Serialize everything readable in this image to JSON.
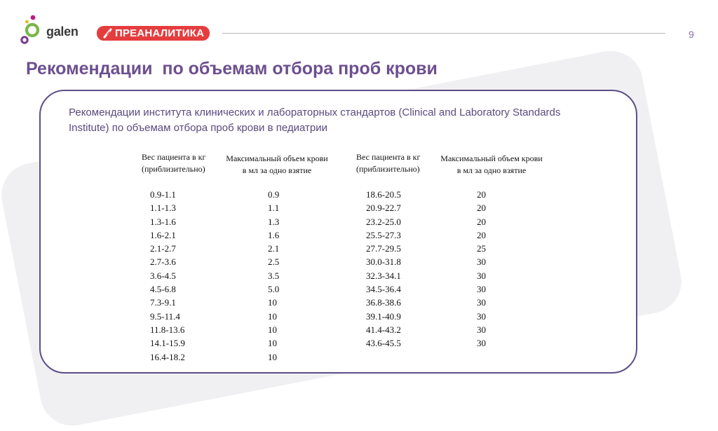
{
  "header": {
    "logo_text": "galen",
    "badge_label": "ПРЕАНАЛИТИКА",
    "page_number": "9"
  },
  "title": "Рекомендации  по объемам отбора проб крови",
  "card": {
    "text": "Рекомендации института клинических и лабораторных стандартов (Clinical and Laboratory Standards Institute) по объемам отбора проб крови в педиатрии"
  },
  "tables": [
    {
      "headers": [
        "Вес пациента в кг\n(приблизительно)",
        "Максимальный объем крови\nв мл за одно взятие"
      ],
      "rows": [
        [
          "0.9-1.1",
          "0.9"
        ],
        [
          "1.1-1.3",
          "1.1"
        ],
        [
          "1.3-1.6",
          "1.3"
        ],
        [
          "1.6-2.1",
          "1.6"
        ],
        [
          "2.1-2.7",
          "2.1"
        ],
        [
          "2.7-3.6",
          "2.5"
        ],
        [
          "3.6-4.5",
          "3.5"
        ],
        [
          "4.5-6.8",
          "5.0"
        ],
        [
          "7.3-9.1",
          "10"
        ],
        [
          "9.5-11.4",
          "10"
        ],
        [
          "11.8-13.6",
          "10"
        ],
        [
          "14.1-15.9",
          "10"
        ],
        [
          "16.4-18.2",
          "10"
        ]
      ]
    },
    {
      "headers": [
        "Вес пациента в кг\n(приблизительно)",
        "Максимальный объем крови\nв мл за одно взятие"
      ],
      "rows": [
        [
          "18.6-20.5",
          "20"
        ],
        [
          "20.9-22.7",
          "20"
        ],
        [
          "23.2-25.0",
          "20"
        ],
        [
          "25.5-27.3",
          "20"
        ],
        [
          "27.7-29.5",
          "25"
        ],
        [
          "30.0-31.8",
          "30"
        ],
        [
          "32.3-34.1",
          "30"
        ],
        [
          "34.5-36.4",
          "30"
        ],
        [
          "36.8-38.6",
          "30"
        ],
        [
          "39.1-40.9",
          "30"
        ],
        [
          "41.4-43.2",
          "30"
        ],
        [
          "43.6-45.5",
          "30"
        ]
      ]
    }
  ]
}
